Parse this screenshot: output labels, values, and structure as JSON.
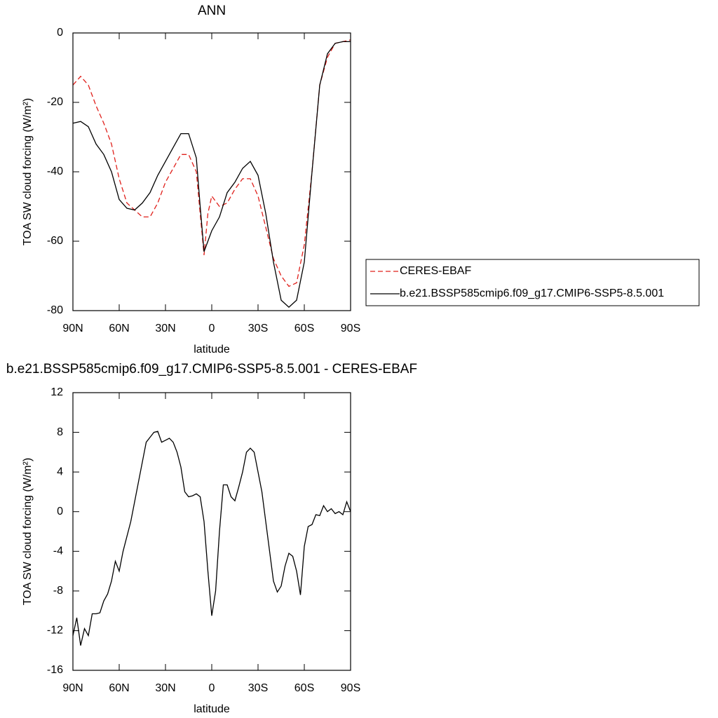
{
  "chart_data": [
    {
      "type": "line",
      "title": "ANN",
      "xlabel": "latitude",
      "ylabel": "TOA SW cloud forcing (W/m²)",
      "x": [
        90,
        85,
        80,
        75,
        70,
        65,
        60,
        55,
        50,
        45,
        40,
        35,
        30,
        25,
        20,
        15,
        10,
        7.5,
        5,
        2.5,
        0,
        -5,
        -10,
        -15,
        -20,
        -25,
        -30,
        -35,
        -40,
        -45,
        -50,
        -55,
        -60,
        -65,
        -70,
        -75,
        -80,
        -85,
        -90
      ],
      "series": [
        {
          "name": "CERES-EBAF",
          "color": "#e0201b",
          "dash": true,
          "values": [
            -15,
            -12.5,
            -15,
            -21,
            -26,
            -32,
            -42,
            -49,
            -51,
            -53,
            -53,
            -49,
            -43,
            -39,
            -35,
            -35,
            -40,
            -52,
            -64,
            -52,
            -47,
            -50,
            -49,
            -45,
            -42,
            -42,
            -47,
            -56,
            -65,
            -70,
            -73,
            -72,
            -61,
            -40,
            -15,
            -7,
            -3,
            -2.5,
            -2
          ]
        },
        {
          "name": "b.e21.BSSP585cmip6.f09_g17.CMIP6-SSP5-8.5.001",
          "color": "#000000",
          "dash": false,
          "values": [
            -26,
            -25.5,
            -27,
            -32,
            -35,
            -40,
            -48,
            -50.5,
            -51,
            -49,
            -46,
            -41,
            -37,
            -33,
            -29,
            -29,
            -36,
            -50,
            -63,
            -60,
            -57,
            -53,
            -46,
            -43,
            -39,
            -37,
            -41,
            -52,
            -66,
            -77,
            -79,
            -77,
            -66,
            -40,
            -15,
            -6,
            -3,
            -2.5,
            -2.5
          ]
        }
      ],
      "xlim": [
        90,
        -90
      ],
      "xticks": [
        {
          "value": 90,
          "label": "90N"
        },
        {
          "value": 60,
          "label": "60N"
        },
        {
          "value": 30,
          "label": "30N"
        },
        0,
        {
          "value": -30,
          "label": "30S"
        },
        {
          "value": -60,
          "label": "60S"
        },
        {
          "value": -90,
          "label": "90S"
        }
      ],
      "ylim": [
        -80,
        0
      ],
      "yticks": [
        -80,
        -60,
        -40,
        -20,
        0
      ]
    },
    {
      "type": "line",
      "title": "b.e21.BSSP585cmip6.f09_g17.CMIP6-SSP5-8.5.001 - CERES-EBAF",
      "xlabel": "latitude",
      "ylabel": "TOA SW cloud forcing (W/m²)",
      "x": [
        90,
        87.5,
        85,
        82.5,
        80,
        77.5,
        75,
        72.5,
        70,
        67.5,
        65,
        62.5,
        60,
        57.5,
        55,
        52.5,
        50,
        47.5,
        45,
        42.5,
        40,
        37.5,
        35,
        32.5,
        30,
        27.5,
        25,
        22.5,
        20,
        17.5,
        15,
        12.5,
        10,
        7.5,
        5,
        2.5,
        0,
        -2.5,
        -5,
        -7.5,
        -10,
        -12.5,
        -15,
        -17.5,
        -20,
        -22.5,
        -25,
        -27.5,
        -30,
        -32.5,
        -35,
        -37.5,
        -40,
        -42.5,
        -45,
        -47.5,
        -50,
        -52.5,
        -55,
        -57.5,
        -60,
        -62.5,
        -65,
        -67.5,
        -70,
        -72.5,
        -75,
        -77.5,
        -80,
        -82.5,
        -85,
        -87.5,
        -90
      ],
      "series": [
        {
          "color": "#000000",
          "dash": false,
          "values": [
            -12.5,
            -10.7,
            -13.5,
            -11.8,
            -12.5,
            -10.3,
            -10.3,
            -10.2,
            -9,
            -8.3,
            -7,
            -5,
            -6,
            -4,
            -2.5,
            -1,
            1,
            3,
            5,
            7,
            7.5,
            8,
            8.1,
            7,
            7.2,
            7.4,
            7,
            6,
            4.5,
            2,
            1.5,
            1.6,
            1.8,
            1.5,
            -1,
            -6,
            -10.5,
            -8,
            -2,
            2.7,
            2.7,
            1.5,
            1.1,
            2.5,
            4,
            6,
            6.4,
            6,
            4,
            2,
            -1,
            -4,
            -7,
            -8.1,
            -7.5,
            -5.5,
            -4.2,
            -4.5,
            -6,
            -8.4,
            -3.5,
            -1.5,
            -1.3,
            -0.3,
            -0.4,
            0.6,
            0,
            0.3,
            -0.2,
            0,
            -0.3,
            1,
            0
          ]
        }
      ],
      "xlim": [
        90,
        -90
      ],
      "xticks": [
        {
          "value": 90,
          "label": "90N"
        },
        {
          "value": 60,
          "label": "60N"
        },
        {
          "value": 30,
          "label": "30N"
        },
        0,
        {
          "value": -30,
          "label": "30S"
        },
        {
          "value": -60,
          "label": "60S"
        },
        {
          "value": -90,
          "label": "90S"
        }
      ],
      "ylim": [
        -16,
        12
      ],
      "yticks": [
        -16,
        -12,
        -8,
        -4,
        0,
        4,
        8,
        12
      ]
    }
  ]
}
